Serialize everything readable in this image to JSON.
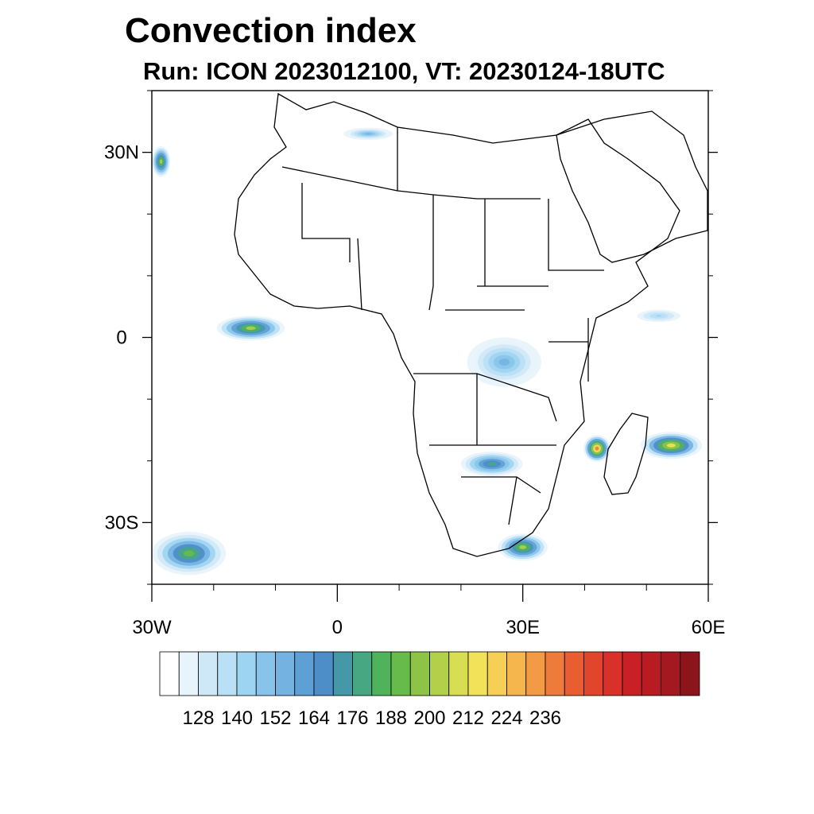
{
  "title": "Convection index",
  "subtitle": "Run: ICON 2023012100,  VT: 20230124-18UTC",
  "map_extent": {
    "lon": [
      -30,
      60
    ],
    "lat": [
      -40,
      40
    ]
  },
  "axes": {
    "lat_labels": [
      {
        "value": 30,
        "label": "30N"
      },
      {
        "value": 0,
        "label": "0"
      },
      {
        "value": -30,
        "label": "30S"
      }
    ],
    "lon_labels": [
      {
        "value": -30,
        "label": "30W"
      },
      {
        "value": 0,
        "label": "0"
      },
      {
        "value": 30,
        "label": "30E"
      },
      {
        "value": 60,
        "label": "60E"
      }
    ],
    "minor_lat_ticks": [
      40,
      20,
      10,
      -10,
      -20,
      -40
    ],
    "minor_lon_ticks": [
      -20,
      -10,
      10,
      20,
      40,
      50
    ]
  },
  "colorbar": {
    "colors": [
      "#ffffff",
      "#e8f4fb",
      "#cfe8f7",
      "#b9e0f5",
      "#9dd4f2",
      "#88c4ea",
      "#74b2e1",
      "#5e9fd6",
      "#4d8dc8",
      "#4598a8",
      "#46a883",
      "#4fb35b",
      "#67bb4a",
      "#8dc446",
      "#b3d04a",
      "#d8de52",
      "#f2e25a",
      "#f6cf56",
      "#f5b64e",
      "#f39a44",
      "#ee7b3a",
      "#e85e31",
      "#e1462d",
      "#d9302a",
      "#c92026",
      "#b81c22",
      "#a3191f",
      "#8c151b"
    ],
    "tick_labels": [
      "128",
      "140",
      "152",
      "164",
      "176",
      "188",
      "200",
      "212",
      "224",
      "236"
    ],
    "tick_values": [
      128,
      140,
      152,
      164,
      176,
      188,
      200,
      212,
      224,
      236
    ]
  },
  "field_blobs": [
    {
      "region": "Gulf of Guinea west",
      "lon": -14,
      "lat": 1.5,
      "rx": 5.5,
      "ry": 2.0,
      "peak": 200
    },
    {
      "region": "Mozambique Channel",
      "lon": 42,
      "lat": -18,
      "rx": 2.2,
      "ry": 2.2,
      "peak": 236
    },
    {
      "region": "Madagascar east",
      "lon": 54,
      "lat": -17.5,
      "rx": 5,
      "ry": 2.2,
      "peak": 212
    },
    {
      "region": "Zambia/Angola",
      "lon": 25,
      "lat": -20.5,
      "rx": 5,
      "ry": 2,
      "peak": 176
    },
    {
      "region": "South Africa",
      "lon": 30,
      "lat": -34,
      "rx": 4,
      "ry": 2.2,
      "peak": 200
    },
    {
      "region": "South Atlantic",
      "lon": -24,
      "lat": -35,
      "rx": 6,
      "ry": 3.5,
      "peak": 188
    },
    {
      "region": "NW Africa coast",
      "lon": -28.5,
      "lat": 28.5,
      "rx": 1.5,
      "ry": 2.5,
      "peak": 200
    },
    {
      "region": "Central Africa",
      "lon": 27,
      "lat": -4,
      "rx": 6,
      "ry": 4,
      "peak": 152
    },
    {
      "region": "Indian Ocean",
      "lon": 52,
      "lat": 3.5,
      "rx": 3.5,
      "ry": 1,
      "peak": 140
    },
    {
      "region": "Mediterranean",
      "lon": 5,
      "lat": 33,
      "rx": 4,
      "ry": 1,
      "peak": 152
    }
  ]
}
